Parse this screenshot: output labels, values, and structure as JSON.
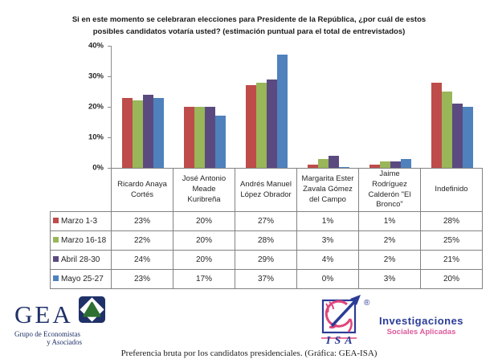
{
  "chart_data": {
    "type": "bar",
    "title": "Si en este momento se celebraran elecciones para Presidente de la República, ¿por cuál de estos posibles candidatos votaría usted? (estimación puntual para el total de entrevistados)",
    "categories": [
      "Ricardo Anaya Cortés",
      "José Antonio Meade Kuribreña",
      "Andrés Manuel López Obrador",
      "Margarita Ester Zavala Gómez del Campo",
      "Jaime Rodríguez Calderón \"El Bronco\"",
      "Indefinido"
    ],
    "series": [
      {
        "name": "Marzo 1-3",
        "color": "#BE4C4A",
        "values": [
          23,
          20,
          27,
          1,
          1,
          28
        ]
      },
      {
        "name": "Marzo 16-18",
        "color": "#99B659",
        "values": [
          22,
          20,
          28,
          3,
          2,
          25
        ]
      },
      {
        "name": "Abril 28-30",
        "color": "#5B4A80",
        "values": [
          24,
          20,
          29,
          4,
          2,
          21
        ]
      },
      {
        "name": "Mayo 25-27",
        "color": "#4F81BD",
        "values": [
          23,
          17,
          37,
          0,
          3,
          20
        ]
      }
    ],
    "value_suffix": "%",
    "ylim": [
      0,
      40
    ],
    "yticks": [
      "40%",
      "30%",
      "20%",
      "10%",
      "0%"
    ],
    "grid": false,
    "legend_position": "table-left"
  },
  "logos": {
    "gea": {
      "acronym": "GEA",
      "subtitle_line1": "Grupo de Economistas",
      "subtitle_line2": "y Asociados",
      "navy": "#1F3168",
      "green": "#2E7031"
    },
    "isa": {
      "acronym": "ISA",
      "registered_mark": "®",
      "name_line1": "Investigaciones",
      "name_line2": "Sociales Aplicadas",
      "blue": "#2B3C97",
      "pink": "#E0457B"
    }
  },
  "caption": "Preferencia bruta por los candidatos presidenciales. (Gráfica: GEA-ISA)"
}
